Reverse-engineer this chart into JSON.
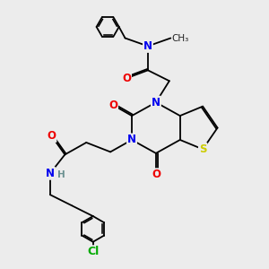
{
  "bg_color": "#ececec",
  "atom_colors": {
    "N": "#0000ee",
    "O": "#ee0000",
    "S": "#cccc00",
    "Cl": "#00aa00",
    "C": "#000000",
    "H": "#6a9090"
  },
  "bond_color": "#000000",
  "bond_width": 1.3,
  "font_size": 8.5,
  "figsize": [
    3.0,
    3.0
  ],
  "dpi": 100,
  "xlim": [
    0.5,
    9.5
  ],
  "ylim": [
    0.5,
    10.5
  ]
}
